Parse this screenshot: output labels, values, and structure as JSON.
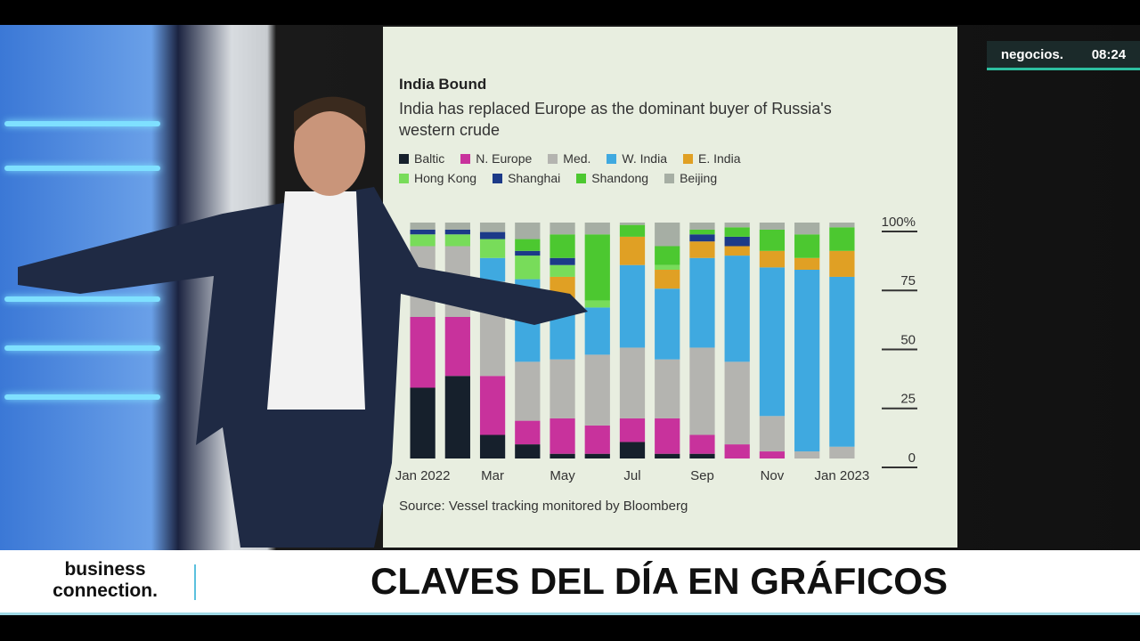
{
  "broadcast": {
    "channel": "negocios.",
    "time": "08:24",
    "show": "business connection.",
    "headline": "CLAVES DEL DÍA EN GRÁFICOS"
  },
  "chart_data": {
    "type": "stacked_bar",
    "title": "India Bound",
    "subtitle": "India has replaced Europe as the dominant buyer of Russia's western crude",
    "source": "Source: Vessel tracking monitored by Bloomberg",
    "categories": [
      "Jan 2022",
      null,
      "Mar",
      null,
      "May",
      null,
      "Jul",
      null,
      "Sep",
      null,
      "Nov",
      null,
      "Jan 2023"
    ],
    "series": [
      {
        "name": "Baltic",
        "color": "#16202c",
        "values": [
          30,
          35,
          10,
          6,
          2,
          2,
          7,
          2,
          2,
          0,
          0,
          0,
          0
        ]
      },
      {
        "name": "N. Europe",
        "color": "#c8329c",
        "values": [
          30,
          25,
          25,
          10,
          15,
          12,
          10,
          15,
          8,
          6,
          3,
          0,
          0
        ]
      },
      {
        "name": "Med.",
        "color": "#b4b4b0",
        "values": [
          30,
          30,
          40,
          25,
          25,
          30,
          30,
          25,
          37,
          35,
          15,
          3,
          5
        ]
      },
      {
        "name": "W. India",
        "color": "#3fa9e0",
        "values": [
          0,
          0,
          10,
          35,
          25,
          20,
          35,
          30,
          38,
          45,
          63,
          77,
          72
        ]
      },
      {
        "name": "E. India",
        "color": "#e0a024",
        "values": [
          0,
          0,
          0,
          0,
          10,
          0,
          12,
          8,
          7,
          4,
          7,
          5,
          11
        ]
      },
      {
        "name": "Hong Kong",
        "color": "#78dc5a",
        "values": [
          5,
          5,
          8,
          10,
          5,
          3,
          0,
          2,
          0,
          0,
          0,
          0,
          0
        ]
      },
      {
        "name": "Shanghai",
        "color": "#1c3a88",
        "values": [
          2,
          2,
          3,
          2,
          3,
          0,
          0,
          0,
          3,
          4,
          0,
          0,
          0
        ]
      },
      {
        "name": "Shandong",
        "color": "#4cc830",
        "values": [
          0,
          0,
          0,
          5,
          10,
          28,
          5,
          8,
          2,
          4,
          9,
          10,
          10
        ]
      },
      {
        "name": "Beijing",
        "color": "#a6aea4",
        "values": [
          3,
          3,
          4,
          7,
          5,
          5,
          1,
          10,
          3,
          2,
          3,
          5,
          2
        ]
      }
    ],
    "ylim": [
      0,
      100
    ],
    "yticks": [
      0,
      25,
      50,
      75,
      {
        "value": 100,
        "label": "100%"
      }
    ]
  }
}
